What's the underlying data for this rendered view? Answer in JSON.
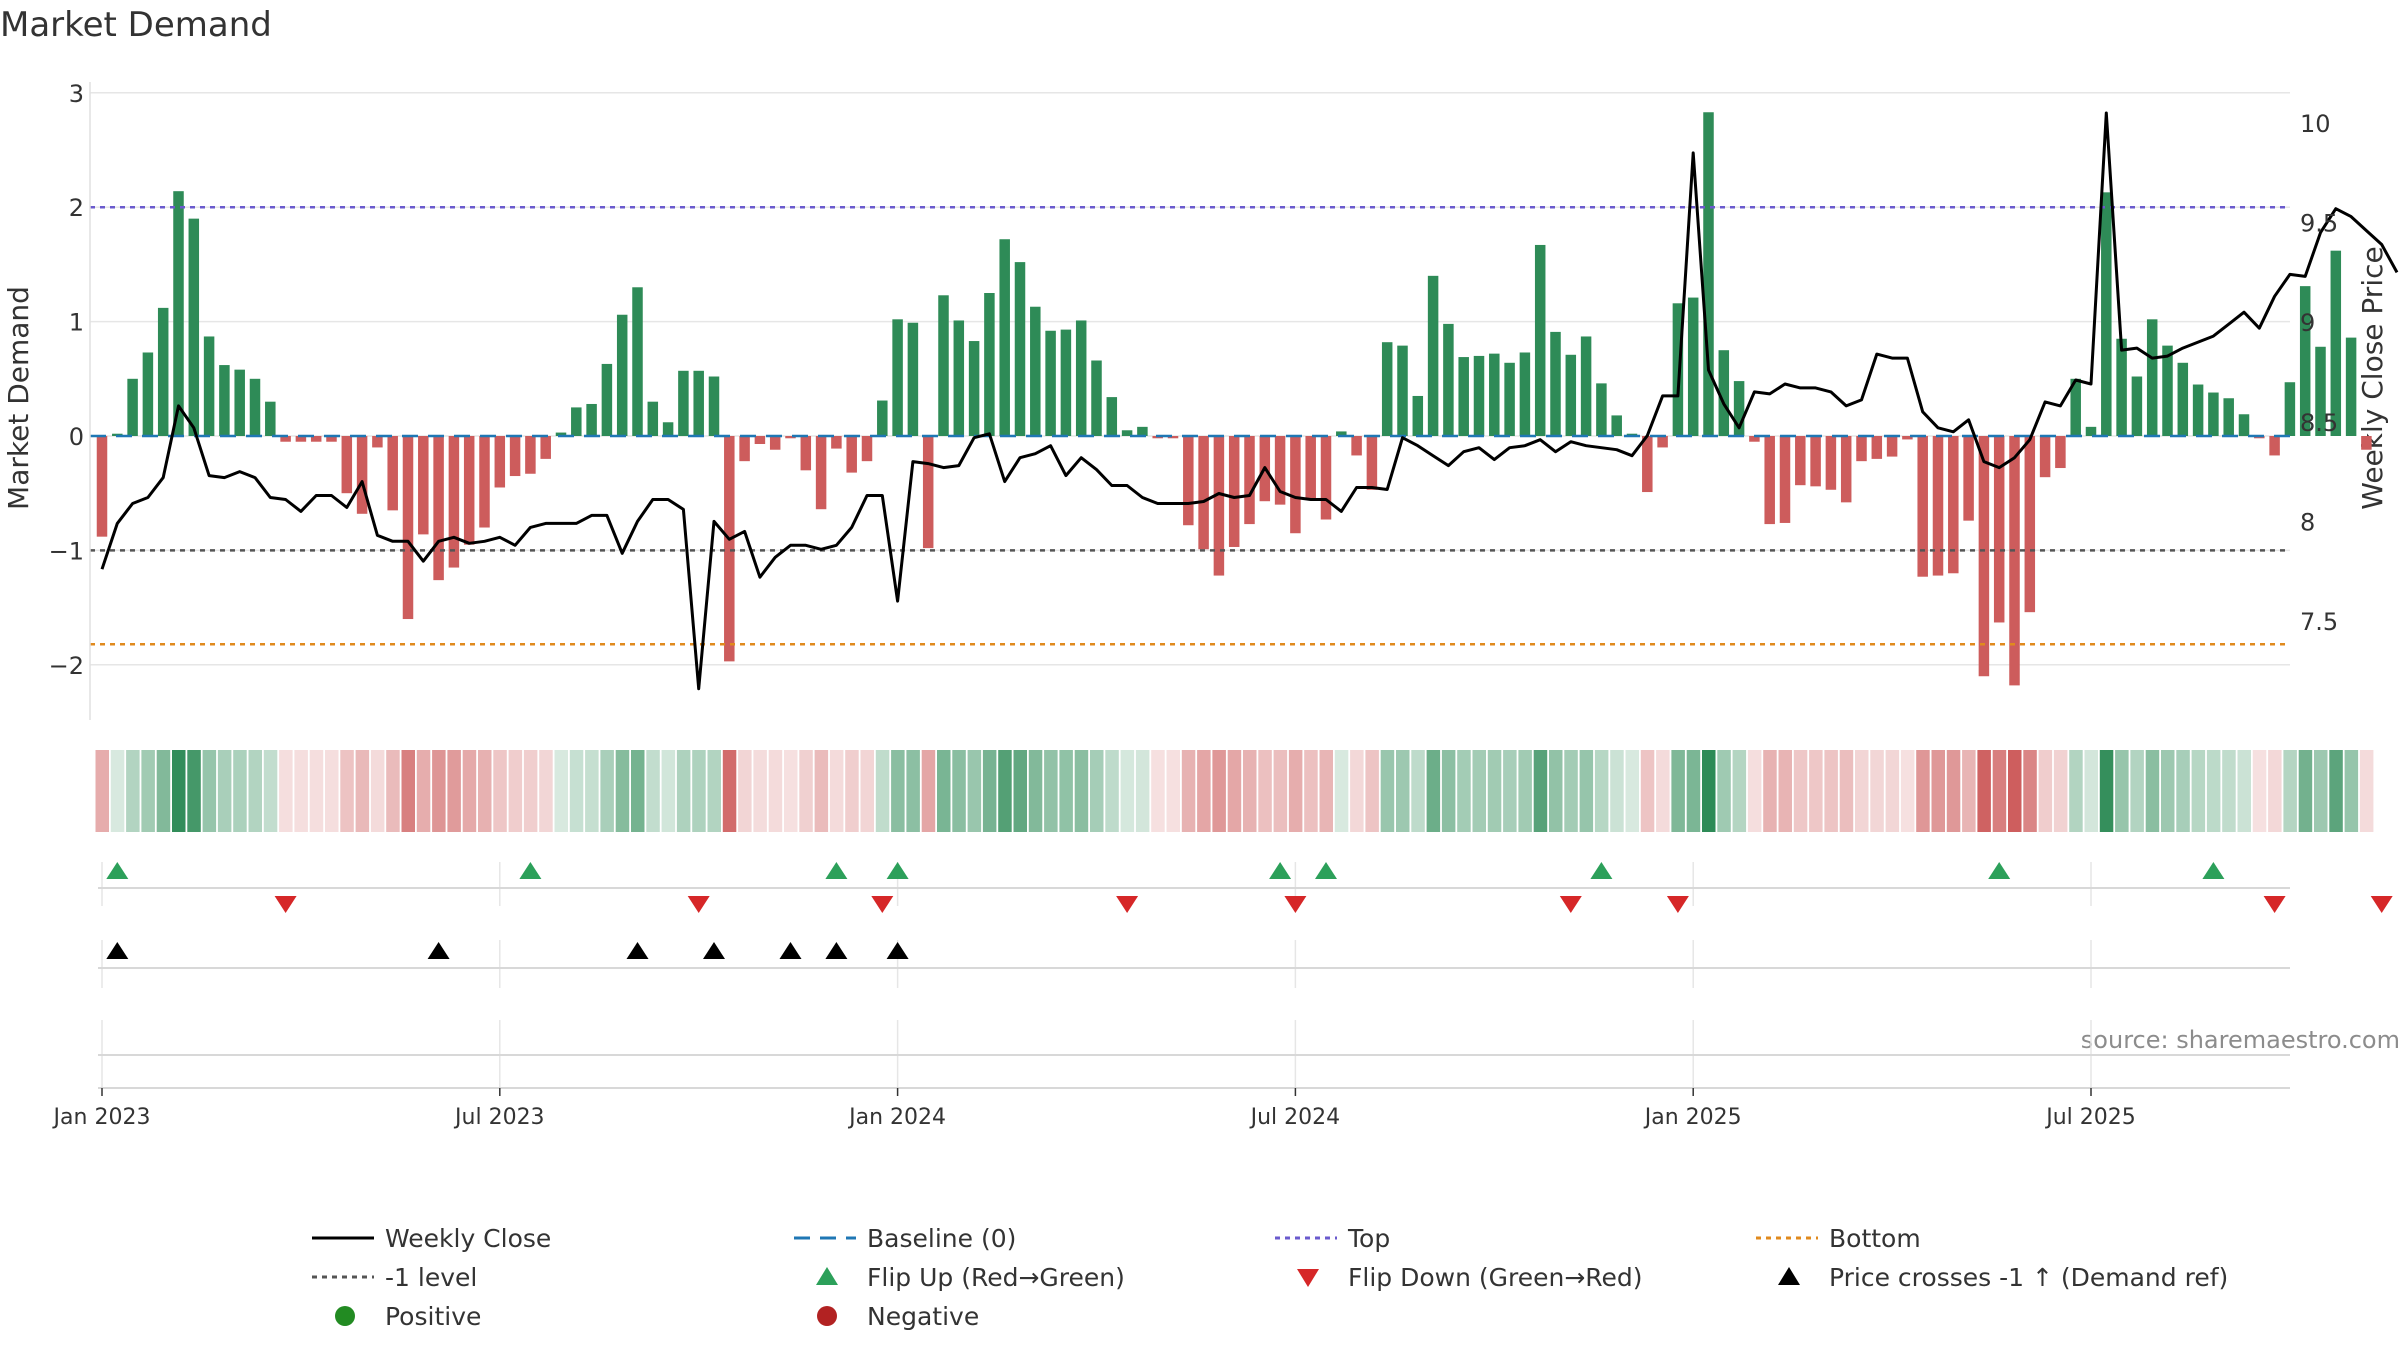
{
  "chart_data": {
    "type": "bar",
    "title": "Market Demand",
    "ylabel_left": "Market Demand",
    "ylabel_right": "Weekly Close Price",
    "ylim_left": [
      -2.5,
      3.1
    ],
    "ylim_right": [
      7.0,
      10.2
    ],
    "yticks_left": [
      {
        "v": 3,
        "label": "3"
      },
      {
        "v": 2,
        "label": "2"
      },
      {
        "v": 1,
        "label": "1"
      },
      {
        "v": 0,
        "label": "0"
      },
      {
        "v": -1,
        "label": "−1"
      },
      {
        "v": -2,
        "label": "−2"
      }
    ],
    "yticks_right": [
      {
        "v": 10,
        "label": "10"
      },
      {
        "v": 9.5,
        "label": "9.5"
      },
      {
        "v": 9,
        "label": "9"
      },
      {
        "v": 8.5,
        "label": "8.5"
      },
      {
        "v": 8,
        "label": "8"
      },
      {
        "v": 7.5,
        "label": "7.5"
      }
    ],
    "xticks": [
      {
        "week": 1,
        "label": "Jan 2023"
      },
      {
        "week": 27,
        "label": "Jul 2023"
      },
      {
        "week": 53,
        "label": "Jan 2024"
      },
      {
        "week": 79,
        "label": "Jul 2024"
      },
      {
        "week": 105,
        "label": "Jan 2025"
      },
      {
        "week": 131,
        "label": "Jul 2025"
      }
    ],
    "reference_lines": {
      "baseline": 0,
      "top": 2.0,
      "minus_one": -1.0,
      "bottom": -1.82
    },
    "series": [
      {
        "name": "Market Demand",
        "values": [
          -0.88,
          0.02,
          0.5,
          0.73,
          1.12,
          2.14,
          1.9,
          0.87,
          0.62,
          0.58,
          0.5,
          0.3,
          -0.05,
          -0.05,
          -0.05,
          -0.05,
          -0.5,
          -0.68,
          -0.1,
          -0.65,
          -1.6,
          -0.86,
          -1.26,
          -1.15,
          -0.95,
          -0.8,
          -0.45,
          -0.35,
          -0.33,
          -0.2,
          0.03,
          0.25,
          0.28,
          0.63,
          1.06,
          1.3,
          0.3,
          0.12,
          0.57,
          0.57,
          0.52,
          -1.97,
          -0.22,
          -0.07,
          -0.12,
          -0.02,
          -0.3,
          -0.64,
          -0.11,
          -0.32,
          -0.22,
          0.31,
          1.02,
          0.99,
          -0.98,
          1.23,
          1.01,
          0.83,
          1.25,
          1.72,
          1.52,
          1.13,
          0.92,
          0.93,
          1.01,
          0.66,
          0.34,
          0.05,
          0.08,
          -0.02,
          -0.02,
          -0.78,
          -0.99,
          -1.22,
          -0.97,
          -0.77,
          -0.57,
          -0.6,
          -0.85,
          -0.55,
          -0.73,
          0.04,
          -0.17,
          -0.47,
          0.82,
          0.79,
          0.35,
          1.4,
          0.98,
          0.69,
          0.7,
          0.72,
          0.64,
          0.73,
          1.67,
          0.91,
          0.71,
          0.87,
          0.46,
          0.18,
          0.02,
          -0.49,
          -0.1,
          1.16,
          1.21,
          2.83,
          0.75,
          0.48,
          -0.05,
          -0.77,
          -0.76,
          -0.43,
          -0.44,
          -0.47,
          -0.58,
          -0.22,
          -0.2,
          -0.18,
          -0.03,
          -1.23,
          -1.22,
          -1.2,
          -0.74,
          -2.1,
          -1.63,
          -2.18,
          -1.54,
          -0.36,
          -0.28,
          0.5,
          0.08,
          2.13,
          0.85,
          0.52,
          1.02,
          0.79,
          0.64,
          0.45,
          0.38,
          0.33,
          0.19,
          -0.02,
          -0.17,
          0.47,
          1.31,
          0.78,
          1.62,
          0.86,
          -0.12
        ]
      },
      {
        "name": "Weekly Close",
        "values": [
          7.76,
          7.99,
          8.09,
          8.12,
          8.22,
          8.58,
          8.47,
          8.23,
          8.22,
          8.25,
          8.22,
          8.12,
          8.11,
          8.05,
          8.13,
          8.13,
          8.07,
          8.2,
          7.93,
          7.9,
          7.9,
          7.8,
          7.9,
          7.92,
          7.89,
          7.9,
          7.92,
          7.88,
          7.97,
          7.99,
          7.99,
          7.99,
          8.03,
          8.03,
          7.84,
          8.0,
          8.11,
          8.11,
          8.06,
          7.16,
          8.0,
          7.91,
          7.95,
          7.72,
          7.82,
          7.88,
          7.88,
          7.86,
          7.88,
          7.97,
          8.13,
          8.13,
          7.6,
          8.3,
          8.29,
          8.27,
          8.28,
          8.42,
          8.44,
          8.2,
          8.32,
          8.34,
          8.38,
          8.23,
          8.32,
          8.26,
          8.18,
          8.18,
          8.12,
          8.09,
          8.09,
          8.09,
          8.1,
          8.14,
          8.12,
          8.13,
          8.27,
          8.15,
          8.12,
          8.11,
          8.11,
          8.05,
          8.17,
          8.17,
          8.16,
          8.42,
          8.38,
          8.33,
          8.28,
          8.35,
          8.37,
          8.31,
          8.37,
          8.38,
          8.41,
          8.35,
          8.4,
          8.38,
          8.37,
          8.36,
          8.33,
          8.43,
          8.63,
          8.63,
          9.85,
          8.76,
          8.59,
          8.47,
          8.65,
          8.64,
          8.69,
          8.67,
          8.67,
          8.65,
          8.58,
          8.61,
          8.84,
          8.82,
          8.82,
          8.55,
          8.47,
          8.45,
          8.51,
          8.3,
          8.27,
          8.32,
          8.41,
          8.6,
          8.58,
          8.71,
          8.69,
          10.05,
          8.86,
          8.87,
          8.82,
          8.83,
          8.87,
          8.9,
          8.93,
          8.99,
          9.05,
          8.97,
          9.13,
          9.24,
          9.23,
          9.45,
          9.57,
          9.53,
          9.46,
          9.39,
          9.25
        ]
      }
    ],
    "flip_up_weeks": [
      2,
      29,
      49,
      53,
      78,
      81,
      99,
      125,
      139
    ],
    "flip_down_weeks": [
      13,
      40,
      52,
      68,
      79,
      97,
      104,
      143,
      150
    ],
    "cross_weeks": [
      2,
      23,
      36,
      41,
      46,
      49,
      53
    ],
    "legend": [
      {
        "label": "Weekly Close",
        "symbol": "line",
        "color": "#000000"
      },
      {
        "label": "Baseline (0)",
        "symbol": "dash",
        "color": "#1f77b4"
      },
      {
        "label": "Top",
        "symbol": "dot",
        "color": "#6a5acd"
      },
      {
        "label": "Bottom",
        "symbol": "dot",
        "color": "#e08a1e"
      },
      {
        "label": "-1 level",
        "symbol": "dot",
        "color": "#555555"
      },
      {
        "label": "Flip Up (Red→Green)",
        "symbol": "tri-up",
        "color": "#2ca05a"
      },
      {
        "label": "Flip Down (Green→Red)",
        "symbol": "tri-down",
        "color": "#d62728"
      },
      {
        "label": "Price crosses -1 ↑ (Demand ref)",
        "symbol": "tri-up",
        "color": "#000000"
      },
      {
        "label": "Positive",
        "symbol": "circle",
        "color": "#228b22"
      },
      {
        "label": "Negative",
        "symbol": "circle",
        "color": "#b22222"
      }
    ],
    "source": "source: sharemaestro.com"
  },
  "colors": {
    "positive_bar": "#2e8b57",
    "negative_bar": "#cd5c5c",
    "price_line": "#000000",
    "baseline": "#1f77b4",
    "top": "#6a5acd",
    "minus_one": "#555555",
    "bottom": "#e08a1e",
    "flip_up": "#2ca05a",
    "flip_down": "#d62728",
    "grid": "#e6e6e6"
  }
}
